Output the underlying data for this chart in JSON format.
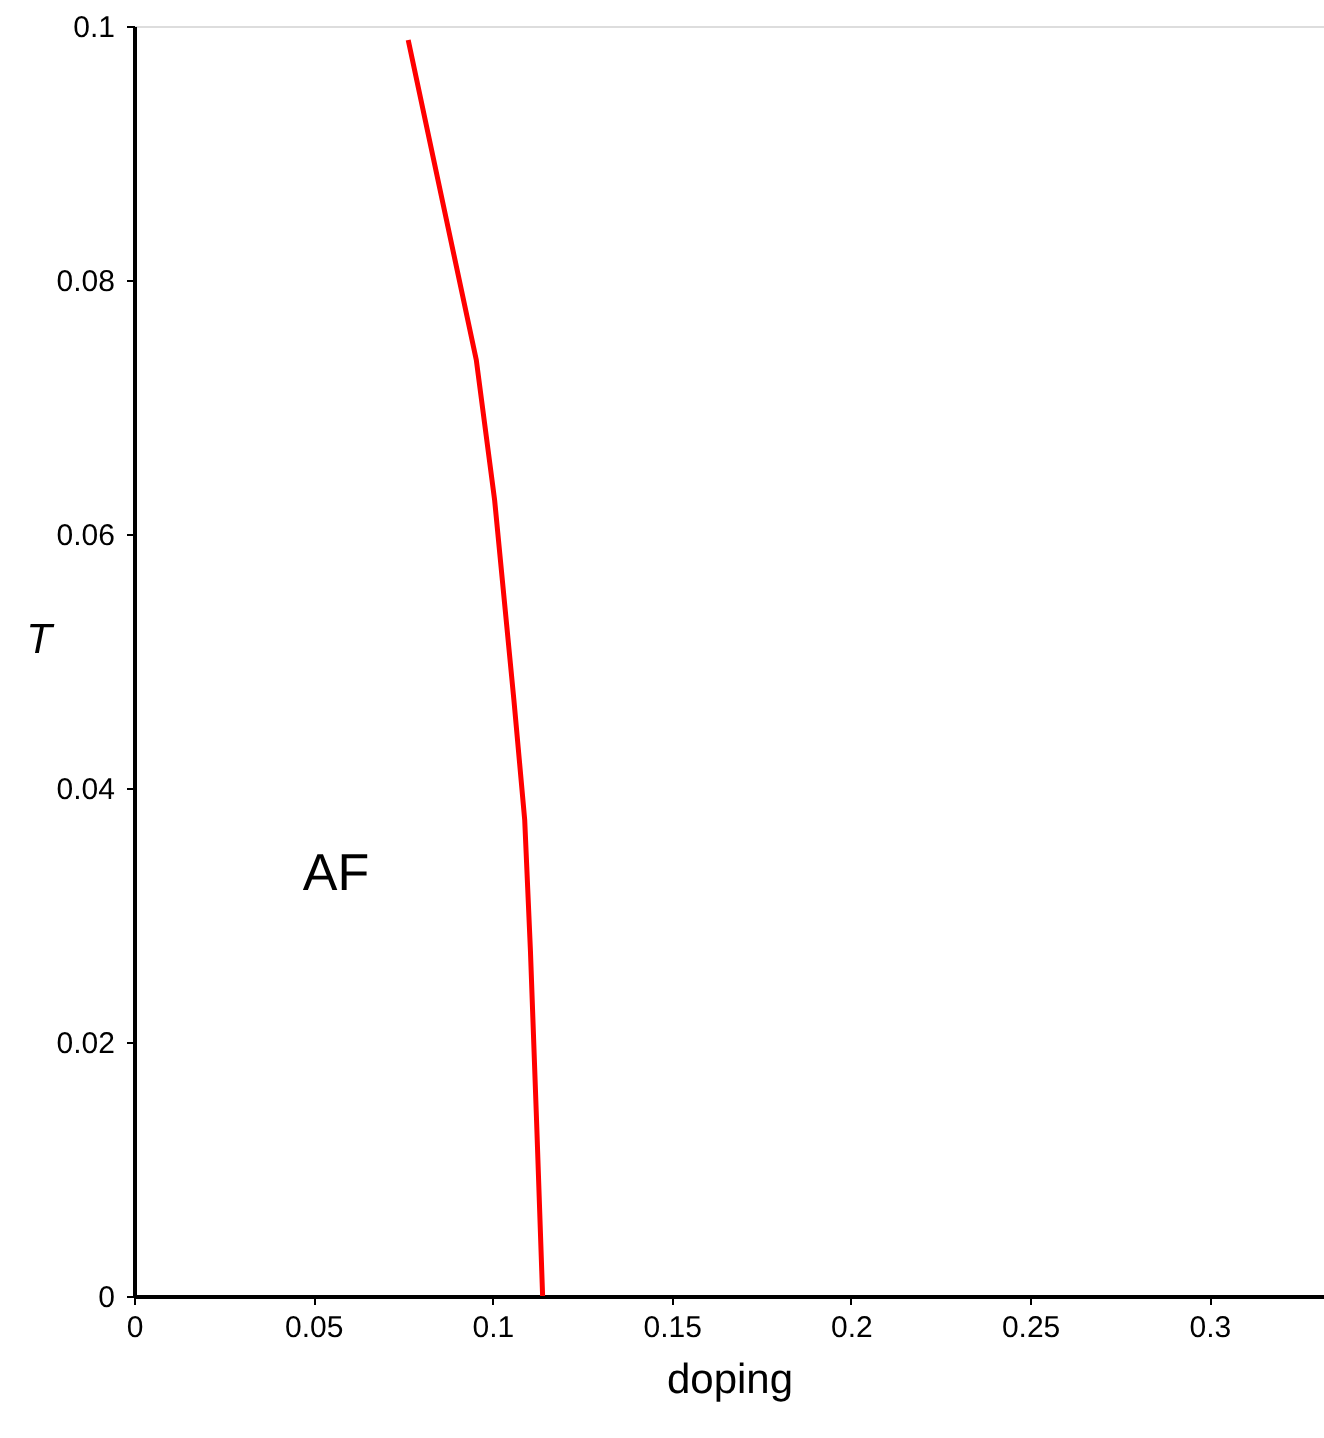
{
  "chart_data": {
    "type": "line",
    "xlabel": "doping",
    "ylabel": "T",
    "x": [
      0.0765,
      0.0866,
      0.0955,
      0.1006,
      0.106,
      0.109,
      0.1106,
      0.1123,
      0.114
    ],
    "series": [
      {
        "color": "#ff0000",
        "values": [
          0.0989,
          0.0855,
          0.0737,
          0.0627,
          0.0469,
          0.0375,
          0.0272,
          0.0139,
          0.0
        ]
      }
    ],
    "xlim": [
      0,
      0.332
    ],
    "xticks": [
      0,
      0.05,
      0.1,
      0.15,
      0.2,
      0.25,
      0.3
    ],
    "ylim": [
      0,
      0.1
    ],
    "yticks": [
      0,
      0.02,
      0.04,
      0.06,
      0.08,
      0.1
    ],
    "annotations": [
      "AF"
    ],
    "grid": false,
    "marker": "none",
    "line_style": "solid"
  }
}
